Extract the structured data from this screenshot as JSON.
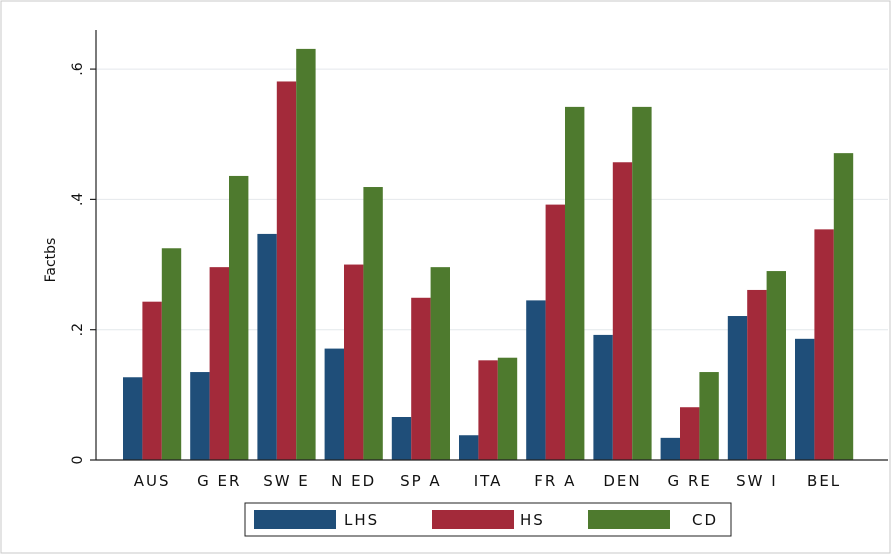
{
  "chart_data": {
    "type": "bar",
    "title": "",
    "xlabel": "",
    "ylabel": "Factbs",
    "categories": [
      "AUS",
      "GER",
      "SWE",
      "NED",
      "SPA",
      "ITA",
      "FRA",
      "DEN",
      "GRE",
      "SWI",
      "BEL"
    ],
    "category_labels": [
      "AUS",
      "G ER",
      "SW E",
      "N ED",
      "SP A",
      "ITA",
      "FR A",
      "DEN",
      "G RE",
      "SW I",
      "BEL"
    ],
    "series": [
      {
        "name": "LHS",
        "color": "#1f4e79",
        "values": [
          0.127,
          0.135,
          0.347,
          0.171,
          0.066,
          0.038,
          0.245,
          0.192,
          0.034,
          0.221,
          0.186
        ]
      },
      {
        "name": "HS",
        "color": "#a32a3a",
        "values": [
          0.243,
          0.296,
          0.581,
          0.3,
          0.249,
          0.153,
          0.392,
          0.457,
          0.081,
          0.261,
          0.354
        ]
      },
      {
        "name": "CD",
        "color": "#4e7a2e",
        "values": [
          0.325,
          0.436,
          0.631,
          0.419,
          0.296,
          0.157,
          0.542,
          0.542,
          0.135,
          0.29,
          0.471
        ]
      }
    ],
    "ylim": [
      0,
      0.66
    ],
    "yticks": [
      0,
      0.2,
      0.4,
      0.6
    ],
    "ytick_labels": [
      "0",
      ".2",
      ".4",
      ".6"
    ],
    "grid": true,
    "legend_position": "bottom"
  }
}
